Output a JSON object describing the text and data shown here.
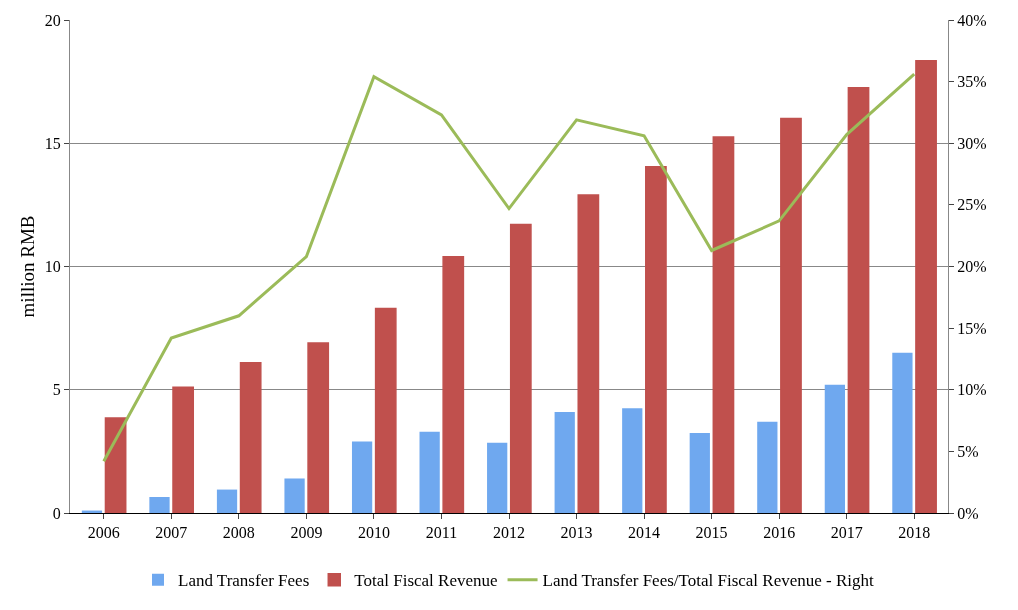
{
  "chart_data": {
    "type": "bar",
    "ylabel": "million RMB",
    "categories": [
      "2006",
      "2007",
      "2008",
      "2009",
      "2010",
      "2011",
      "2012",
      "2013",
      "2014",
      "2015",
      "2016",
      "2017",
      "2018"
    ],
    "series": [
      {
        "name": "Land Transfer Fees",
        "color": "#6fa8ef",
        "values": [
          0.1,
          0.65,
          0.95,
          1.4,
          2.9,
          3.3,
          2.85,
          4.1,
          4.25,
          3.25,
          3.7,
          5.2,
          6.5
        ]
      },
      {
        "name": "Total Fiscal Revenue",
        "color": "#c0504d",
        "values": [
          3.85,
          5.1,
          6.1,
          6.9,
          8.3,
          10.4,
          11.7,
          12.9,
          14.05,
          15.25,
          16.0,
          17.25,
          18.35
        ]
      },
      {
        "name": "Land Transfer Fees/Total Fiscal Revenue - Right",
        "type": "line",
        "axis": "y2",
        "color": "#9bbb59",
        "values": [
          4.2,
          14.2,
          16.0,
          20.8,
          35.4,
          32.3,
          24.7,
          31.9,
          30.6,
          21.3,
          23.7,
          30.7,
          35.6
        ]
      }
    ],
    "ylim": [
      0,
      20
    ],
    "yticks": [
      0,
      5,
      10,
      15,
      20
    ],
    "y2lim": [
      0,
      40
    ],
    "y2ticks": [
      {
        "value": 0,
        "label": "0%"
      },
      {
        "value": 5,
        "label": "5%"
      },
      {
        "value": 10,
        "label": "10%"
      },
      {
        "value": 15,
        "label": "15%"
      },
      {
        "value": 20,
        "label": "20%"
      },
      {
        "value": 25,
        "label": "25%"
      },
      {
        "value": 30,
        "label": "30%"
      },
      {
        "value": 35,
        "label": "35%"
      },
      {
        "value": 40,
        "label": "40%"
      }
    ],
    "grid": "y",
    "legend": "bottom",
    "marker": "none",
    "line_style": "solid"
  }
}
